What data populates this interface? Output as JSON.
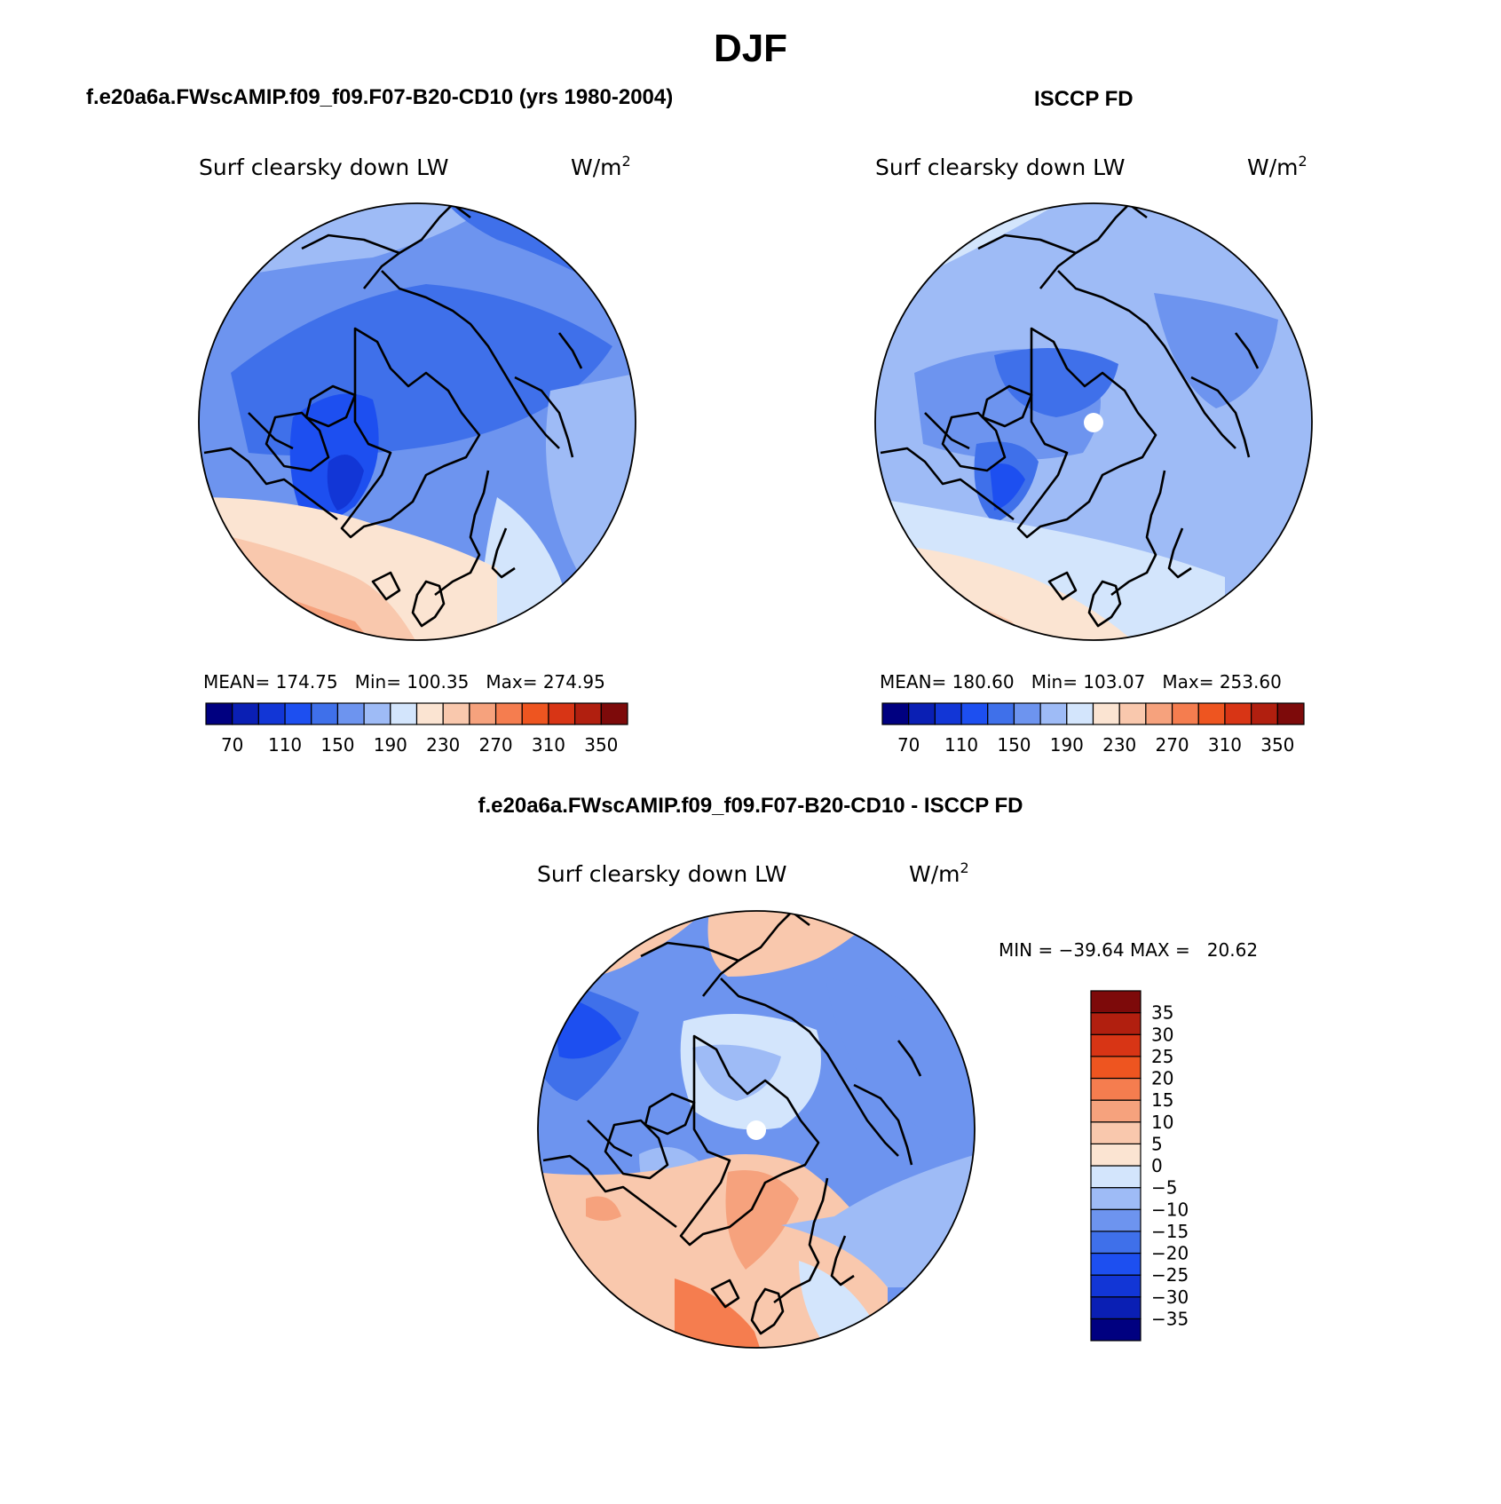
{
  "title": "DJF",
  "panels": [
    {
      "heading": "f.e20a6a.FWscAMIP.f09_f09.F07-B20-CD10 (yrs 1980-2004)",
      "variable": "Surf clearsky down LW",
      "units_base": "W/m",
      "units_exp": "2",
      "stats": "MEAN= 174.75   Min= 100.35   Max= 274.95"
    },
    {
      "heading": "ISCCP FD",
      "variable": "Surf clearsky down LW",
      "units_base": "W/m",
      "units_exp": "2",
      "stats": "MEAN= 180.60   Min= 103.07   Max= 253.60"
    },
    {
      "heading": "f.e20a6a.FWscAMIP.f09_f09.F07-B20-CD10 - ISCCP FD",
      "variable": "Surf clearsky down LW",
      "units_base": "W/m",
      "units_exp": "2",
      "stats": "MIN = −39.64 MAX =   20.62"
    }
  ],
  "colorbars": {
    "abs_colors": [
      "#000080",
      "#0a1fb4",
      "#1236d6",
      "#1d4ff0",
      "#3f70ea",
      "#6d94ef",
      "#9ebbf6",
      "#d3e5fc",
      "#fbe4d2",
      "#f9c8ad",
      "#f6a27d",
      "#f57d4f",
      "#ee5520",
      "#d83515",
      "#b11f0f",
      "#7d0a0a"
    ],
    "abs_labels": [
      "70",
      "110",
      "150",
      "190",
      "230",
      "270",
      "310",
      "350"
    ],
    "diff_colors": [
      "#000080",
      "#0a1fb4",
      "#1236d6",
      "#1d4ff0",
      "#3f70ea",
      "#6d94ef",
      "#9ebbf6",
      "#d3e5fc",
      "#fbe4d2",
      "#f9c8ad",
      "#f6a27d",
      "#f57d4f",
      "#ee5520",
      "#d83515",
      "#b11f0f",
      "#7d0a0a"
    ],
    "diff_labels": [
      "−35",
      "−30",
      "−25",
      "−20",
      "−15",
      "−10",
      "−5",
      "0",
      "5",
      "10",
      "15",
      "20",
      "25",
      "30",
      "35"
    ]
  }
}
